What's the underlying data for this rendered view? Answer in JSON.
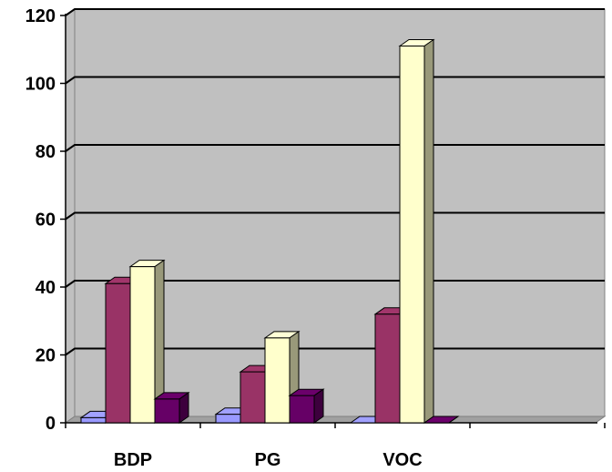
{
  "chart_data": {
    "type": "bar",
    "title": "",
    "xlabel": "",
    "ylabel": "",
    "categories": [
      "BDP",
      "PG",
      "VOC",
      ""
    ],
    "ylim": [
      0,
      120
    ],
    "yticks": [
      0,
      20,
      40,
      60,
      80,
      100,
      120
    ],
    "grid": true,
    "three_d": true,
    "legend": "none",
    "series": [
      {
        "color": "#9999ff",
        "values": [
          1.5,
          2.5,
          0,
          null
        ]
      },
      {
        "color": "#993366",
        "values": [
          41,
          15,
          32,
          null
        ]
      },
      {
        "color": "#ffffcc",
        "values": [
          46,
          25,
          111,
          null
        ]
      },
      {
        "color": "#660066",
        "values": [
          7,
          8,
          0,
          null
        ]
      }
    ]
  },
  "colors": {
    "plot_area": "#c0c0c0",
    "walls": "#c0c0c0",
    "gridline": "#000000"
  }
}
